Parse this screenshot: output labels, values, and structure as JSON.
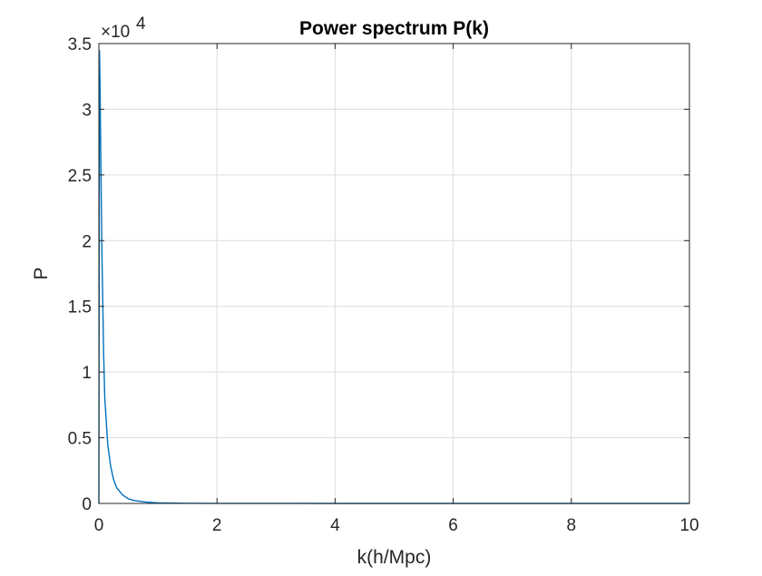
{
  "chart_data": {
    "type": "line",
    "title": "Power spectrum P(k)",
    "xlabel": "k(h/Mpc)",
    "ylabel": "P",
    "y_multiplier_base": "×10",
    "y_multiplier_exponent": "4",
    "xlim": [
      0,
      10
    ],
    "ylim": [
      0,
      3.5
    ],
    "y_scale_factor": 10000,
    "grid": true,
    "x_ticks": [
      "0",
      "2",
      "4",
      "6",
      "8",
      "10"
    ],
    "y_ticks": [
      "0",
      "0.5",
      "1",
      "1.5",
      "2",
      "2.5",
      "3",
      "3.5"
    ],
    "series": [
      {
        "color": "#0072BD",
        "x": [
          0,
          0.01,
          0.02,
          0.03,
          0.05,
          0.08,
          0.1,
          0.15,
          0.2,
          0.25,
          0.3,
          0.4,
          0.5,
          0.6,
          0.8,
          1.0,
          1.2,
          1.5,
          2.0,
          3.0,
          4.0,
          6.0,
          8.0,
          10.0
        ],
        "y": [
          0,
          3.45,
          3.2,
          2.75,
          1.95,
          1.15,
          0.8,
          0.45,
          0.28,
          0.18,
          0.12,
          0.065,
          0.035,
          0.022,
          0.01,
          0.005,
          0.003,
          0.0015,
          0.0006,
          0.0002,
          0.0001,
          3e-05,
          1e-05,
          0.0
        ]
      }
    ]
  }
}
